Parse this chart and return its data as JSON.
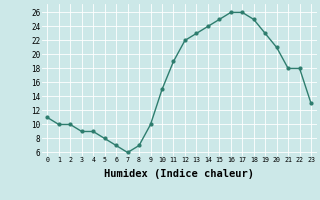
{
  "x": [
    0,
    1,
    2,
    3,
    4,
    5,
    6,
    7,
    8,
    9,
    10,
    11,
    12,
    13,
    14,
    15,
    16,
    17,
    18,
    19,
    20,
    21,
    22,
    23
  ],
  "y": [
    11,
    10,
    10,
    9,
    9,
    8,
    7,
    6,
    7,
    10,
    15,
    19,
    22,
    23,
    24,
    25,
    26,
    26,
    25,
    23,
    21,
    18,
    18,
    13
  ],
  "line_color": "#2e7d6e",
  "marker": "o",
  "marker_size": 2,
  "bg_color": "#cce8e8",
  "grid_color": "#ffffff",
  "xlabel": "Humidex (Indice chaleur)",
  "xlabel_fontsize": 7.5,
  "ylabel_ticks": [
    6,
    8,
    10,
    12,
    14,
    16,
    18,
    20,
    22,
    24,
    26
  ],
  "ylim": [
    5.5,
    27.2
  ],
  "xlim": [
    -0.5,
    23.5
  ],
  "xtick_labels": [
    "0",
    "1",
    "2",
    "3",
    "4",
    "5",
    "6",
    "7",
    "8",
    "9",
    "10",
    "11",
    "12",
    "13",
    "14",
    "15",
    "16",
    "17",
    "18",
    "19",
    "20",
    "21",
    "22",
    "23"
  ]
}
